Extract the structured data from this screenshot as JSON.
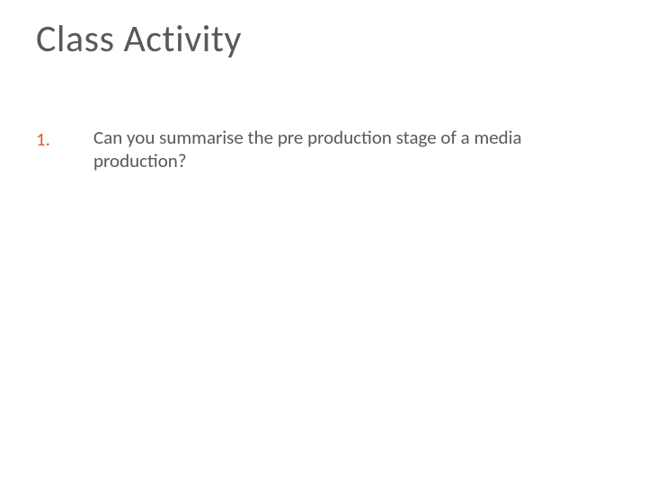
{
  "slide": {
    "title": "Class Activity",
    "title_color": "#595959",
    "title_fontsize": 42,
    "background_color": "#ffffff",
    "items": [
      {
        "number": "1.",
        "number_color": "#d95b26",
        "text": "Can you summarise the pre production stage of a media production?",
        "text_color": "#595959",
        "fontsize": 21
      }
    ]
  }
}
